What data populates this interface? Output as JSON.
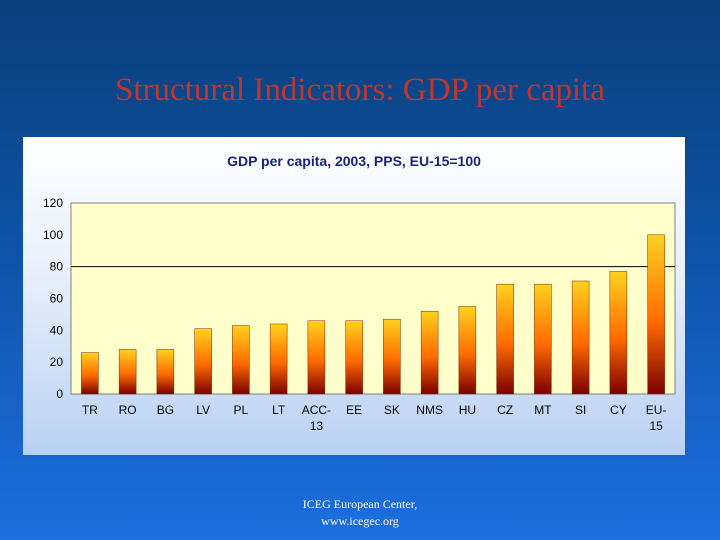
{
  "slide": {
    "title": "Structural Indicators: GDP per capita",
    "footer_line1": "ICEG European Center,",
    "footer_line2": "www.icegec.org"
  },
  "colors": {
    "bar_top": "#ffd21f",
    "bar_mid": "#ff6a00",
    "bar_bottom": "#7a0000",
    "plot_bg": "#ffffcc",
    "title_red": "#c0362c"
  },
  "chart_data": {
    "type": "bar",
    "title": "GDP per capita, 2003, PPS, EU-15=100",
    "categories": [
      "TR",
      "RO",
      "BG",
      "LV",
      "PL",
      "LT",
      "ACC-13",
      "EE",
      "SK",
      "NMS",
      "HU",
      "CZ",
      "MT",
      "SI",
      "CY",
      "EU-15"
    ],
    "category_lines": [
      [
        "TR"
      ],
      [
        "RO"
      ],
      [
        "BG"
      ],
      [
        "LV"
      ],
      [
        "PL"
      ],
      [
        "LT"
      ],
      [
        "ACC-",
        "13"
      ],
      [
        "EE"
      ],
      [
        "SK"
      ],
      [
        "NMS"
      ],
      [
        "HU"
      ],
      [
        "CZ"
      ],
      [
        "MT"
      ],
      [
        "SI"
      ],
      [
        "CY"
      ],
      [
        "EU-",
        "15"
      ]
    ],
    "values": [
      26,
      28,
      28,
      41,
      43,
      44,
      46,
      46,
      47,
      52,
      55,
      69,
      69,
      71,
      77,
      100
    ],
    "ylim": [
      0,
      120
    ],
    "yticks": [
      "0",
      "20",
      "40",
      "60",
      "80",
      "100",
      "120"
    ],
    "ytick_values": [
      0,
      20,
      40,
      60,
      80,
      100,
      120
    ],
    "reference_line": 80,
    "grid": false,
    "legend": "none",
    "xlabel": "",
    "ylabel": ""
  }
}
